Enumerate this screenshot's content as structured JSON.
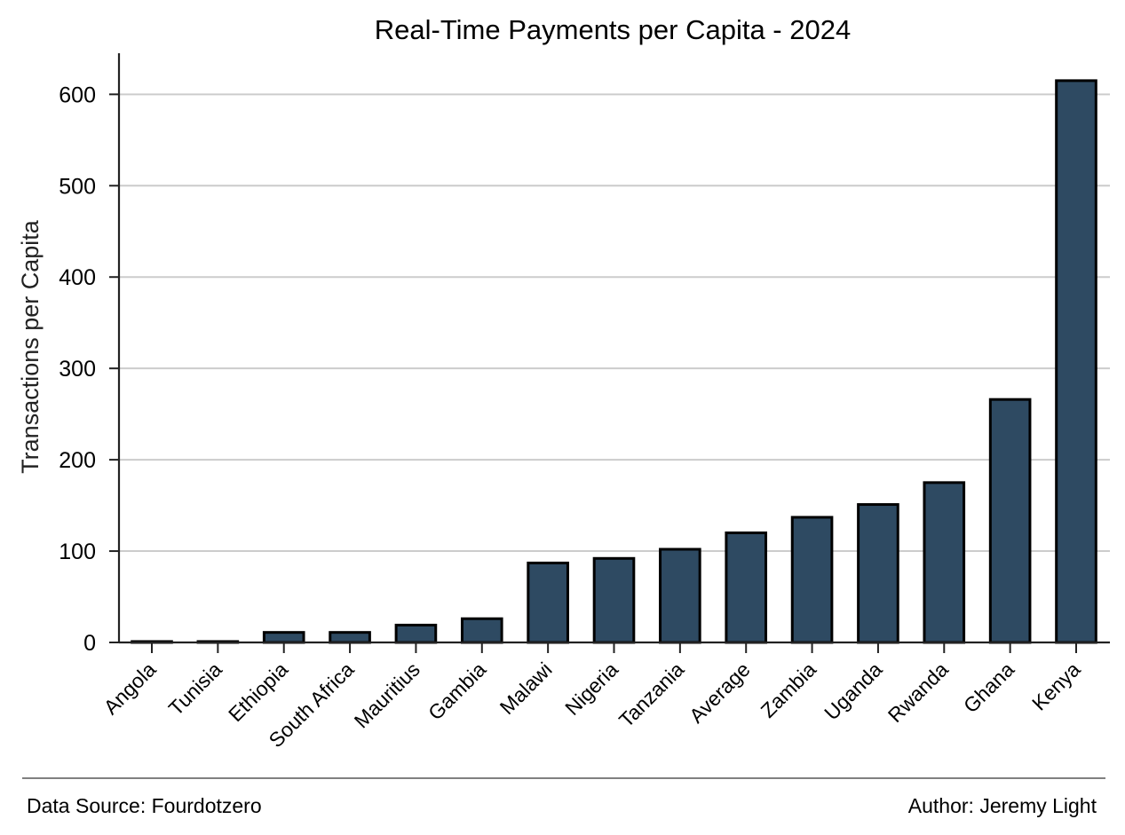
{
  "chart_data": {
    "type": "bar",
    "title": "Real-Time Payments per Capita - 2024",
    "xlabel": "",
    "ylabel": "Transactions per Capita",
    "categories": [
      "Angola",
      "Tunisia",
      "Ethiopia",
      "South Africa",
      "Mauritius",
      "Gambia",
      "Malawi",
      "Nigeria",
      "Tanzania",
      "Average",
      "Zambia",
      "Uganda",
      "Rwanda",
      "Ghana",
      "Kenya"
    ],
    "values": [
      1,
      1,
      11,
      11,
      19,
      26,
      87,
      92,
      102,
      120,
      137,
      151,
      175,
      266,
      615
    ],
    "ylim": [
      0,
      645
    ],
    "yticks": [
      0,
      100,
      200,
      300,
      400,
      500,
      600
    ],
    "grid": "horizontal",
    "bar_color": "#2e4a62",
    "bar_edge_color": "#000000"
  },
  "footer": {
    "source": "Data Source: Fourdotzero",
    "author": "Author: Jeremy Light"
  }
}
